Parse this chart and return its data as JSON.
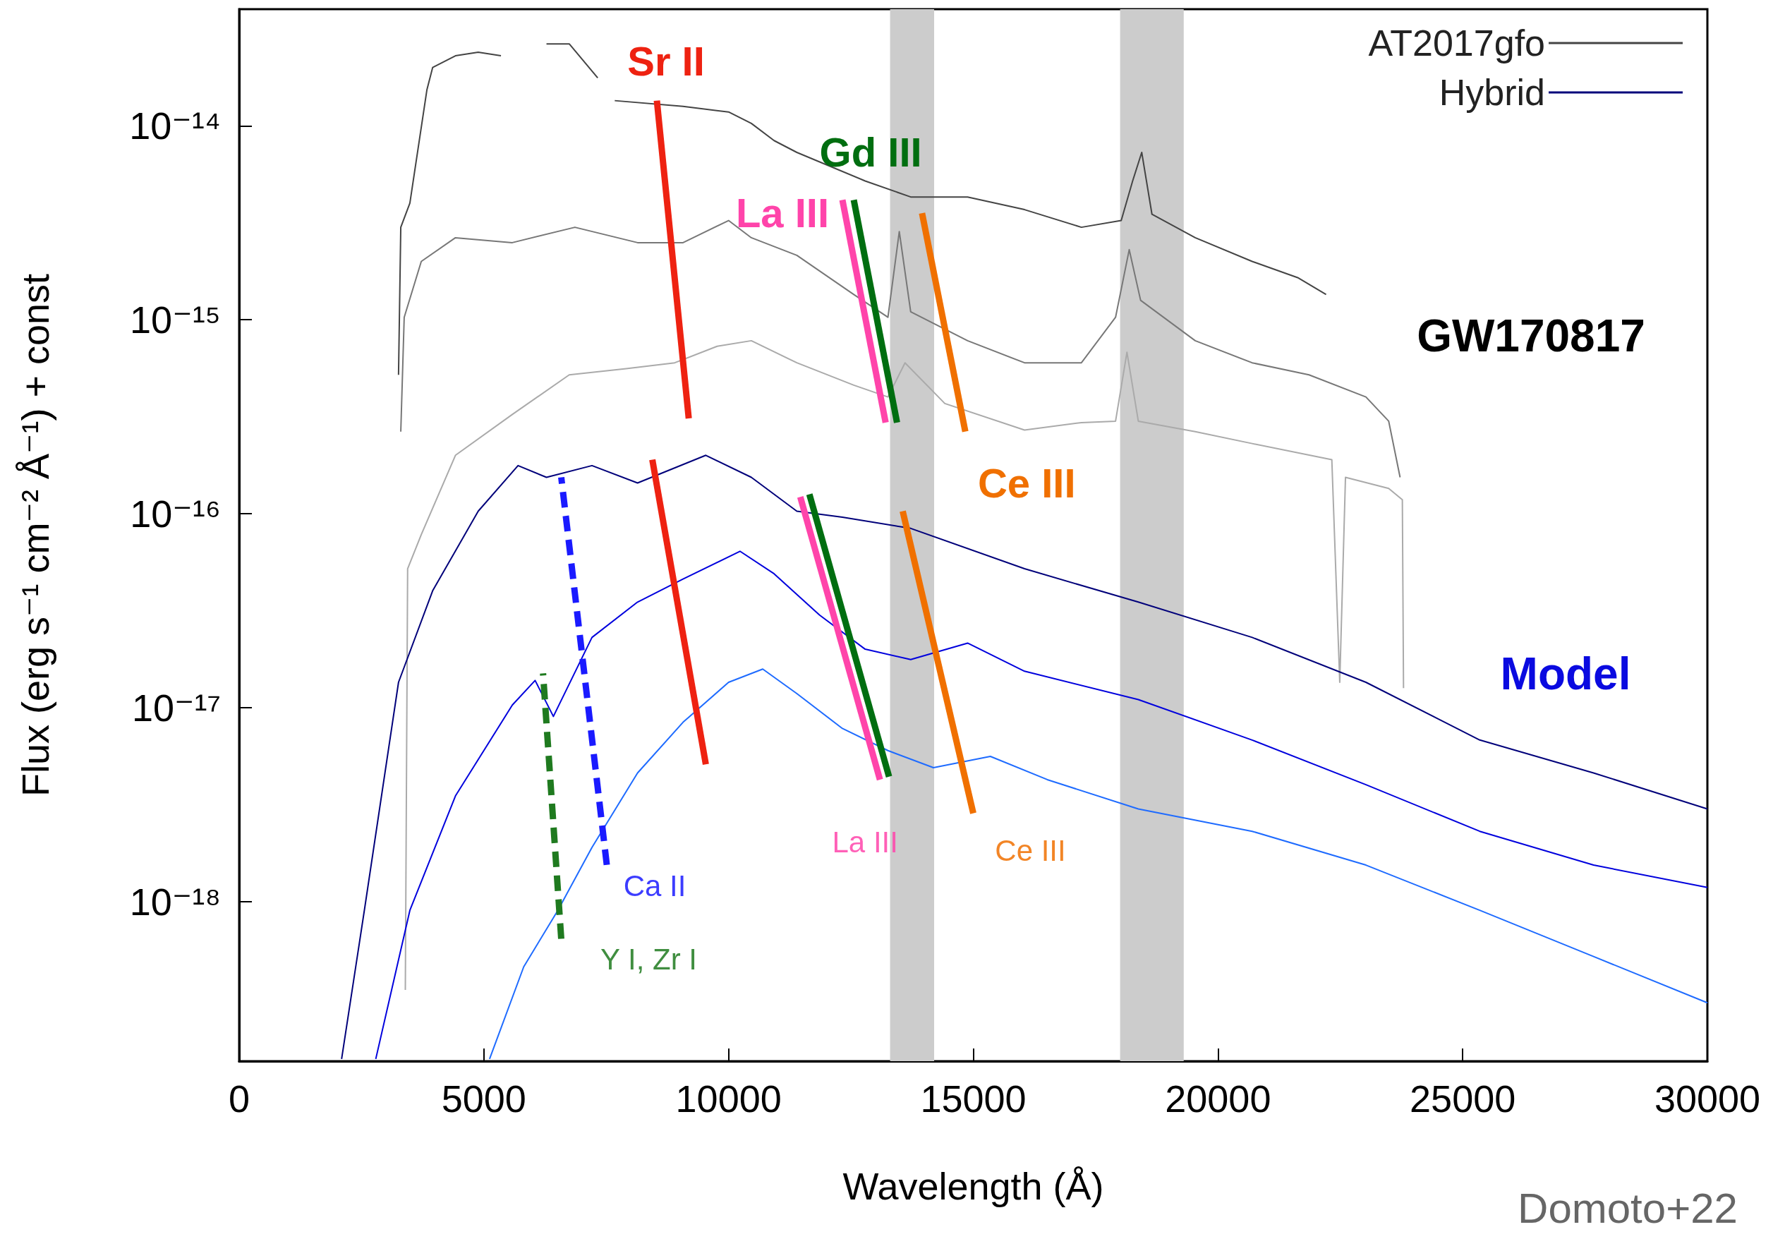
{
  "chart_data": {
    "type": "line",
    "xlabel": "Wavelength (Å)",
    "ylabel": "Flux (erg s⁻¹ cm⁻² Å⁻¹) + const",
    "log": "y",
    "grid": false,
    "legend": "top right",
    "marker": "none",
    "line_style": "solid",
    "xlim": [
      0,
      30000
    ],
    "xticks": [
      0,
      5000,
      10000,
      15000,
      20000,
      25000,
      30000
    ],
    "ylim": [
      1.5e-19,
      4e-14
    ],
    "yticks": [
      {
        "value": 1e-18,
        "label": "10⁻¹⁸"
      },
      {
        "value": 1e-17,
        "label": "10⁻¹⁷"
      },
      {
        "value": 1e-16,
        "label": "10⁻¹⁶"
      },
      {
        "value": 1e-15,
        "label": "10⁻¹⁵"
      },
      {
        "value": 1e-14,
        "label": "10⁻¹⁴"
      }
    ],
    "bands": [
      {
        "axis": "x",
        "from": 13300,
        "to": 14200,
        "color": "#cccccc"
      },
      {
        "axis": "x",
        "from": 18000,
        "to": 19300,
        "color": "#cccccc"
      }
    ],
    "series": [
      {
        "name": "AT2017gfo",
        "color": "#444444",
        "x": [
          3256,
          3302,
          3488,
          3837,
          3953,
          4419,
          4884,
          5349,
          5800,
          6279,
          6744,
          7326,
          7500,
          7674,
          9070,
          10000,
          10465,
          10930,
          11395,
          12791,
          13721,
          14884,
          16047,
          17209,
          18023,
          18256,
          18442,
          18651,
          19535,
          20698,
          21628,
          22209
        ],
        "values": [
          5.2e-16,
          3e-15,
          4e-15,
          1.54e-14,
          2e-14,
          2.3e-14,
          2.4e-14,
          2.3e-14,
          null,
          2.65e-14,
          2.65e-14,
          1.77e-14,
          null,
          1.35e-14,
          1.26e-14,
          1.18e-14,
          1.03e-14,
          8.4e-15,
          7.3e-15,
          5.2e-15,
          4.3e-15,
          4.3e-15,
          3.7e-15,
          3e-15,
          3.25e-15,
          5.2e-15,
          7.3e-15,
          3.5e-15,
          2.65e-15,
          2e-15,
          1.65e-15,
          1.35e-15
        ]
      },
      {
        "color": "#777777",
        "x": [
          3302,
          3372,
          3721,
          4419,
          5581,
          6860,
          8140,
          9070,
          10000,
          10465,
          11395,
          12558,
          13256,
          13488,
          13721,
          14884,
          16047,
          17209,
          17907,
          18186,
          18419,
          19535,
          20698,
          21860,
          23023,
          23488,
          23721
        ],
        "values": [
          2.65e-16,
          1.03e-15,
          2e-15,
          2.65e-15,
          2.5e-15,
          3e-15,
          2.5e-15,
          2.5e-15,
          3.25e-15,
          2.65e-15,
          2.15e-15,
          1.35e-15,
          1.03e-15,
          2.85e-15,
          1.1e-15,
          7.8e-16,
          6e-16,
          6e-16,
          1.03e-15,
          2.3e-15,
          1.26e-15,
          7.8e-16,
          6e-16,
          5.2e-16,
          4e-16,
          3e-16,
          1.54e-16
        ]
      },
      {
        "color": "#aaaaaa",
        "x": [
          3395,
          3442,
          3721,
          4419,
          5581,
          6744,
          7907,
          8900,
          9767,
          10465,
          11395,
          12558,
          13256,
          13605,
          14419,
          16047,
          17209,
          17907,
          18140,
          18372,
          19535,
          20698,
          22326,
          22488,
          22605,
          23488,
          23767,
          23791
        ],
        "values": [
          3.5e-19,
          5.2e-17,
          7.8e-17,
          2e-16,
          3.25e-16,
          5.2e-16,
          5.6e-16,
          6e-16,
          7.3e-16,
          7.8e-16,
          6e-16,
          4.6e-16,
          4e-16,
          6e-16,
          3.7e-16,
          2.7e-16,
          2.95e-16,
          3e-16,
          6.8e-16,
          3e-16,
          2.65e-16,
          2.3e-16,
          1.9e-16,
          1.35e-17,
          1.54e-16,
          1.35e-16,
          1.18e-16,
          1.26e-17
        ]
      },
      {
        "name": "Hybrid",
        "color": "#00007a",
        "x": [
          2093,
          2558,
          3256,
          3953,
          4884,
          5698,
          6279,
          7209,
          8140,
          9535,
          10465,
          11395,
          12326,
          13721,
          16047,
          18372,
          20698,
          23023,
          25349,
          27674,
          30000
        ],
        "values": [
          1.54e-19,
          9e-19,
          1.35e-17,
          4e-17,
          1.03e-16,
          1.77e-16,
          1.54e-16,
          1.77e-16,
          1.44e-16,
          2e-16,
          1.54e-16,
          1.03e-16,
          9.6e-17,
          8.4e-17,
          5.2e-17,
          3.5e-17,
          2.3e-17,
          1.35e-17,
          6.8e-18,
          4.6e-18,
          3e-18
        ]
      },
      {
        "color": "#0000dd",
        "x": [
          2791,
          3488,
          4419,
          5581,
          6047,
          6420,
          7209,
          8140,
          9070,
          10233,
          10930,
          11860,
          12791,
          13721,
          14884,
          16047,
          18372,
          20698,
          23023,
          25349,
          27674,
          30000
        ],
        "values": [
          1.54e-19,
          9e-19,
          3.5e-18,
          1.03e-17,
          1.38e-17,
          9e-18,
          2.3e-17,
          3.5e-17,
          4.6e-17,
          6.4e-17,
          4.9e-17,
          3e-17,
          2e-17,
          1.77e-17,
          2.15e-17,
          1.54e-17,
          1.1e-17,
          6.8e-18,
          4e-18,
          2.3e-18,
          1.54e-18,
          1.18e-18
        ]
      },
      {
        "color": "#1e6bff",
        "x": [
          5116,
          5814,
          6512,
          7209,
          8140,
          9070,
          10000,
          10698,
          11395,
          12326,
          13256,
          14186,
          15349,
          16512,
          18372,
          20698,
          23023,
          25349,
          27674,
          30000
        ],
        "values": [
          1.54e-19,
          4.6e-19,
          9e-19,
          1.9e-18,
          4.6e-18,
          8.4e-18,
          1.35e-17,
          1.58e-17,
          1.18e-17,
          7.8e-18,
          6e-18,
          4.9e-18,
          5.6e-18,
          4.25e-18,
          3e-18,
          2.3e-18,
          1.54e-18,
          9e-19,
          5.2e-19,
          3e-19
        ]
      },
      {
        "name": "Sr II",
        "color": "#ee2211",
        "x": [
          8535,
          9186
        ],
        "values": [
          1.35e-14,
          3.1e-16
        ]
      },
      {
        "color": "#ee2211",
        "x": [
          8442,
          9535
        ],
        "values": [
          1.9e-16,
          5.1e-18
        ]
      },
      {
        "name": "La III",
        "color": "#ff44aa",
        "x": [
          12326,
          13209
        ],
        "values": [
          4.15e-15,
          2.95e-16
        ]
      },
      {
        "name": "Gd III",
        "color": "#006e10",
        "x": [
          12558,
          13442
        ],
        "values": [
          4.15e-15,
          2.95e-16
        ]
      },
      {
        "name": "Ce III",
        "color": "#f07000",
        "x": [
          13953,
          14837
        ],
        "values": [
          3.55e-15,
          2.65e-16
        ]
      },
      {
        "name": "La III",
        "color": "#ff44aa",
        "x": [
          11465,
          13093
        ],
        "values": [
          1.22e-16,
          4.25e-18
        ]
      },
      {
        "color": "#006e10",
        "x": [
          11651,
          13279
        ],
        "values": [
          1.26e-16,
          4.4e-18
        ]
      },
      {
        "name": "Ce III",
        "color": "#f07000",
        "x": [
          13558,
          15000
        ],
        "values": [
          1.03e-16,
          2.85e-18
        ]
      },
      {
        "name": "Ca II",
        "color": "#1a1aff",
        "line_style": "dashed",
        "x": [
          6581,
          7512
        ],
        "values": [
          1.54e-16,
          1.54e-18
        ]
      },
      {
        "name": "Y I, Zr I",
        "color": "#1f7a1f",
        "line_style": "dashed",
        "x": [
          6209,
          6581
        ],
        "values": [
          1.5e-17,
          6.4e-19
        ]
      }
    ],
    "annotations": [
      "GW170817",
      "Model",
      "Domoto+22"
    ]
  }
}
